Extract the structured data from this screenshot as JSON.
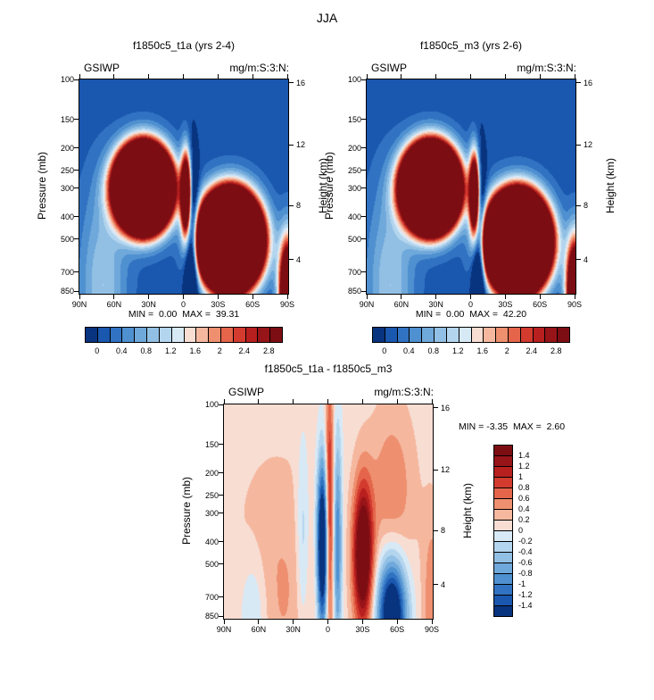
{
  "page": {
    "title": "JJA"
  },
  "chart_data": {
    "type": "heatmap",
    "title": "JJA",
    "season": "JJA",
    "variable": "GSIWP",
    "units": "mg/m:S:3:N:",
    "contour_interval": 0.2,
    "colors": [
      "#08337e",
      "#1a57ae",
      "#3173c2",
      "#4f90d0",
      "#6fa8da",
      "#92c0e4",
      "#b4d5ee",
      "#d8e9f6",
      "#f8ddd3",
      "#f5b89f",
      "#ee8f6f",
      "#e4654a",
      "#d23b2e",
      "#b7201f",
      "#971418",
      "#7c0d12"
    ],
    "axes": {
      "pressure_label": "Pressure (mb)",
      "height_label": "Height (km)",
      "pressure_ticks": [
        100,
        150,
        200,
        250,
        300,
        400,
        500,
        700,
        850
      ],
      "height_ticks": [
        {
          "km": "16",
          "p": 103.5
        },
        {
          "km": "12",
          "p": 193.3
        },
        {
          "km": "8",
          "p": 356.5
        },
        {
          "km": "4",
          "p": 616.4
        }
      ],
      "lat_ticks": [
        {
          "label": "90N",
          "deg": 90
        },
        {
          "label": "60N",
          "deg": 60
        },
        {
          "label": "30N",
          "deg": 30
        },
        {
          "label": "0",
          "deg": 0
        },
        {
          "label": "30S",
          "deg": -30
        },
        {
          "label": "60S",
          "deg": -60
        },
        {
          "label": "90S",
          "deg": -90
        }
      ],
      "p_top": 100,
      "p_bottom": 870,
      "x_range": "90N to 90S",
      "y_scale": "log-pressure"
    },
    "top_colorbar_labels": [
      "0",
      "0.4",
      "0.8",
      "1.2",
      "1.6",
      "2",
      "2.4",
      "2.8"
    ],
    "diff_colorbar_labels": [
      "1.4",
      "1.2",
      "1",
      "0.8",
      "0.6",
      "0.4",
      "0.2",
      "0",
      "-0.2",
      "-0.4",
      "-0.6",
      "-0.8",
      "-1",
      "-1.2",
      "-1.4"
    ],
    "blob_format": "[amplitude, lat_deg, pressure_mb, sigma_lat_deg, sigma_log10p]",
    "panels": [
      {
        "title": "f1850c5_t1a (yrs 2-4)",
        "var_label": "GSIWP",
        "units_label": "mg/m:S:3:N:",
        "min": 0.0,
        "max": 39.31,
        "minmax_text": "MIN =  0.00  MAX =  39.31",
        "level_min": 0,
        "level_max": 2.8,
        "field_model": {
          "base": 0.1,
          "blobs": [
            [
              30,
              35,
              300,
              13,
              0.1
            ],
            [
              6,
              -2,
              320,
              3,
              0.12
            ],
            [
              35,
              -40,
              510,
              14,
              0.11
            ],
            [
              -2.5,
              -7,
              520,
              4,
              0.22
            ],
            [
              6,
              -90,
              850,
              5,
              0.15
            ],
            [
              0.9,
              70,
              800,
              14,
              0.3
            ]
          ]
        }
      },
      {
        "title": "f1850c5_m3 (yrs 2-6)",
        "var_label": "GSIWP",
        "units_label": "mg/m:S:3:N:",
        "min": 0.0,
        "max": 42.2,
        "minmax_text": "MIN =  0.00  MAX =  42.20",
        "level_min": 0,
        "level_max": 2.8,
        "field_model": {
          "base": 0.1,
          "blobs": [
            [
              31,
              35,
              300,
              13,
              0.1
            ],
            [
              6,
              -3,
              320,
              3,
              0.12
            ],
            [
              38,
              -40,
              520,
              14,
              0.11
            ],
            [
              -2.5,
              -7,
              520,
              4,
              0.22
            ],
            [
              6,
              -90,
              850,
              5,
              0.15
            ],
            [
              0.9,
              70,
              800,
              14,
              0.3
            ]
          ]
        }
      },
      {
        "title": "f1850c5_t1a - f1850c5_m3",
        "var_label": "GSIWP",
        "units_label": "mg/m:S:3:N:",
        "min": -3.35,
        "max": 2.6,
        "minmax_text": "MIN = -3.35  MAX =  2.60",
        "level_min": -1.4,
        "level_max": 1.4,
        "field_model": {
          "base": 0.08,
          "blobs": [
            [
              -0.5,
              22,
              400,
              4,
              0.3
            ],
            [
              -2.4,
              5,
              420,
              3.5,
              0.26
            ],
            [
              1.2,
              -1,
              300,
              2.5,
              0.4
            ],
            [
              -1.1,
              -8,
              420,
              2.8,
              0.35
            ],
            [
              2.0,
              -30,
              460,
              6,
              0.22
            ],
            [
              -2.2,
              -55,
              830,
              9,
              0.18
            ],
            [
              0.5,
              -55,
              250,
              14,
              0.28
            ],
            [
              0.35,
              45,
              650,
              28,
              0.4
            ],
            [
              -0.5,
              65,
              830,
              9,
              0.2
            ],
            [
              0.5,
              -90,
              780,
              6,
              0.3
            ]
          ]
        }
      }
    ]
  }
}
